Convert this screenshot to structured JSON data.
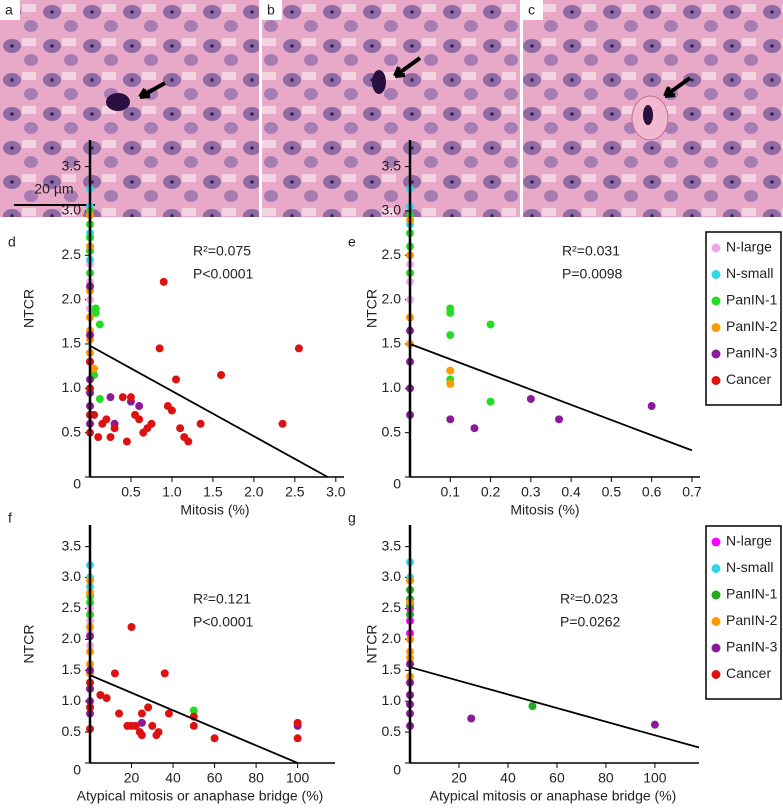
{
  "images": [
    {
      "label": "a"
    },
    {
      "label": "b"
    },
    {
      "label": "c"
    }
  ],
  "scale_bar": "20 µm",
  "chart_data": [
    {
      "type": "scatter",
      "panel": "d",
      "xlabel": "Mitosis (%)",
      "ylabel": "NTCR",
      "annotations": [
        "R²=0.075",
        "P<0.0001"
      ],
      "legend": "none",
      "xlim": [
        0,
        3.1
      ],
      "ylim": [
        0,
        3.8
      ],
      "xticks": [
        0.5,
        {
          "value": 1,
          "label": "1.0"
        },
        1.5,
        {
          "value": 2,
          "label": "2.0"
        },
        2.5,
        {
          "value": 3,
          "label": "3.0"
        }
      ],
      "yticks": [
        0,
        0.5,
        {
          "value": 1,
          "label": "1.0"
        },
        1.5,
        {
          "value": 2,
          "label": "2.0"
        },
        2.5,
        {
          "value": 3,
          "label": "3.0"
        },
        3.5
      ],
      "series": [
        {
          "color": "#f2a8e8",
          "x": [
            0,
            0,
            0,
            0,
            0,
            0
          ],
          "y": [
            2.4,
            2.3,
            2.2,
            2.0,
            1.9,
            1.8
          ]
        },
        {
          "color": "#33d6e6",
          "x": [
            0,
            0,
            0,
            0,
            0
          ],
          "y": [
            3.25,
            3.05,
            2.75,
            2.6,
            2.45
          ]
        },
        {
          "color": "#22dd22",
          "x": [
            0,
            0,
            0,
            0,
            0,
            0.07,
            0.07,
            0.12,
            0.12,
            0.05
          ],
          "y": [
            3.0,
            2.85,
            2.7,
            2.55,
            2.3,
            1.9,
            1.85,
            1.72,
            0.88,
            1.15
          ]
        },
        {
          "color": "#ff9900",
          "x": [
            0,
            0,
            0,
            0,
            0,
            0,
            0,
            0.05
          ],
          "y": [
            2.95,
            2.6,
            2.1,
            1.8,
            1.65,
            1.55,
            1.4,
            1.22
          ]
        },
        {
          "color": "#8b1a9b",
          "x": [
            0,
            0,
            0,
            0,
            0,
            0,
            0,
            0.25,
            0.3,
            0.6,
            0.5
          ],
          "y": [
            2.15,
            1.6,
            1.3,
            1.1,
            0.95,
            0.8,
            0.6,
            0.9,
            0.6,
            0.8,
            0.85
          ]
        },
        {
          "color": "#dd1111",
          "x": [
            0,
            0,
            0,
            0,
            0.05,
            0.1,
            0.15,
            0.2,
            0.25,
            0.3,
            0.4,
            0.45,
            0.5,
            0.55,
            0.6,
            0.65,
            0.7,
            0.75,
            0.85,
            0.9,
            0.95,
            1.0,
            1.05,
            1.1,
            1.15,
            1.2,
            1.35,
            1.6,
            2.35,
            2.55
          ],
          "y": [
            1.3,
            1.0,
            0.7,
            0.5,
            0.7,
            0.45,
            0.6,
            0.65,
            0.45,
            0.55,
            0.9,
            0.4,
            0.9,
            0.7,
            0.65,
            0.5,
            0.55,
            0.6,
            1.45,
            2.2,
            0.8,
            0.75,
            1.1,
            0.55,
            0.45,
            0.4,
            0.6,
            1.15,
            0.6,
            1.45
          ]
        }
      ],
      "fit_line": {
        "x": [
          0,
          2.9
        ],
        "y": [
          1.48,
          0
        ]
      }
    },
    {
      "type": "scatter",
      "panel": "e",
      "xlabel": "Mitosis (%)",
      "ylabel": "NTCR",
      "annotations": [
        "R²=0.031",
        "P=0.0098"
      ],
      "legend": "right",
      "xlim": [
        0,
        0.72
      ],
      "ylim": [
        0,
        3.8
      ],
      "xticks": [
        0.1,
        0.2,
        0.3,
        0.4,
        0.5,
        0.6,
        0.7
      ],
      "yticks": [
        0,
        0.5,
        {
          "value": 1,
          "label": "1.0"
        },
        1.5,
        {
          "value": 2,
          "label": "2.0"
        },
        2.5,
        {
          "value": 3,
          "label": "3.0"
        },
        3.5
      ],
      "series": [
        {
          "name": "N-large",
          "color": "#f2a8e8",
          "x": [
            0,
            0,
            0,
            0,
            0
          ],
          "y": [
            2.5,
            2.4,
            2.3,
            2.2,
            2.0
          ]
        },
        {
          "name": "N-small",
          "color": "#33d6e6",
          "x": [
            0,
            0,
            0
          ],
          "y": [
            3.25,
            3.05,
            2.85
          ]
        },
        {
          "name": "PanIN-1",
          "color": "#22dd22",
          "x": [
            0,
            0,
            0,
            0,
            0.1,
            0.1,
            0.1,
            0.1,
            0.2,
            0.2
          ],
          "y": [
            2.95,
            2.75,
            2.6,
            2.3,
            1.9,
            1.85,
            1.6,
            1.1,
            1.72,
            0.85
          ]
        },
        {
          "name": "PanIN-2",
          "color": "#ff9900",
          "x": [
            0,
            0,
            0,
            0,
            0.1,
            0.1
          ],
          "y": [
            2.9,
            2.5,
            1.8,
            1.5,
            1.2,
            1.05
          ]
        },
        {
          "name": "PanIN-3",
          "color": "#8b1a9b",
          "x": [
            0,
            0,
            0,
            0,
            0.1,
            0.16,
            0.3,
            0.37,
            0.6
          ],
          "y": [
            1.65,
            1.3,
            1.0,
            0.7,
            0.65,
            0.55,
            0.88,
            0.65,
            0.8
          ]
        },
        {
          "name": "Cancer",
          "color": "#dd1111",
          "x": [],
          "y": []
        }
      ],
      "fit_line": {
        "x": [
          0,
          0.7
        ],
        "y": [
          1.5,
          0.3
        ]
      }
    },
    {
      "type": "scatter",
      "panel": "f",
      "xlabel": "Atypical mitosis or anaphase bridge (%)",
      "ylabel": "NTCR",
      "annotations": [
        "R²=0.121",
        "P<0.0001"
      ],
      "legend": "none",
      "xlim": [
        0,
        118
      ],
      "ylim": [
        0,
        3.85
      ],
      "xticks": [
        20,
        40,
        60,
        80,
        100
      ],
      "yticks": [
        0,
        0.5,
        {
          "value": 1,
          "label": "1.0"
        },
        1.5,
        {
          "value": 2,
          "label": "2.0"
        },
        2.5,
        {
          "value": 3,
          "label": "3.0"
        },
        3.5
      ],
      "series": [
        {
          "color": "#f2a8e8",
          "x": [
            0,
            0,
            0,
            0
          ],
          "y": [
            2.5,
            2.3,
            2.1,
            1.9
          ]
        },
        {
          "color": "#33d6e6",
          "x": [
            0,
            0,
            0
          ],
          "y": [
            3.2,
            3.0,
            2.85
          ]
        },
        {
          "color": "#22dd22",
          "x": [
            0,
            0,
            0,
            50
          ],
          "y": [
            2.7,
            2.6,
            2.4,
            0.85
          ]
        },
        {
          "color": "#ff9900",
          "x": [
            0,
            0,
            0,
            0,
            0,
            0
          ],
          "y": [
            2.95,
            2.75,
            2.2,
            1.8,
            1.6,
            1.45
          ]
        },
        {
          "color": "#8b1a9b",
          "x": [
            0,
            0,
            0,
            0,
            0,
            25,
            100
          ],
          "y": [
            2.05,
            1.5,
            1.2,
            1.0,
            0.8,
            0.65,
            0.6
          ]
        },
        {
          "color": "#dd1111",
          "x": [
            0,
            0,
            0,
            5,
            8,
            12,
            14,
            18,
            20,
            22,
            24,
            25,
            28,
            30,
            33,
            36,
            38,
            50,
            50,
            60,
            100,
            100,
            20,
            25,
            32
          ],
          "y": [
            1.3,
            0.9,
            0.55,
            1.1,
            1.05,
            1.45,
            0.8,
            0.6,
            2.2,
            0.6,
            0.5,
            0.45,
            0.9,
            0.6,
            0.5,
            1.45,
            0.8,
            0.75,
            0.6,
            0.4,
            0.65,
            0.4,
            0.6,
            0.8,
            0.45
          ]
        }
      ],
      "fit_line": {
        "x": [
          0,
          100
        ],
        "y": [
          1.42,
          0
        ]
      }
    },
    {
      "type": "scatter",
      "panel": "g",
      "xlabel": "Atypical mitosis or anaphase bridge (%)",
      "ylabel": "NTCR",
      "annotations": [
        "R²=0.023",
        "P=0.0262"
      ],
      "legend": "right",
      "xlim": [
        0,
        118
      ],
      "ylim": [
        0,
        3.85
      ],
      "xticks": [
        20,
        40,
        60,
        80,
        100
      ],
      "yticks": [
        0,
        0.5,
        {
          "value": 1,
          "label": "1.0"
        },
        1.5,
        {
          "value": 2,
          "label": "2.0"
        },
        2.5,
        {
          "value": 3,
          "label": "3.0"
        },
        3.5
      ],
      "series": [
        {
          "name": "N-large",
          "color": "#ff00ff",
          "x": [
            0,
            0,
            0
          ],
          "y": [
            2.5,
            2.3,
            2.1
          ]
        },
        {
          "name": "N-small",
          "color": "#33d6e6",
          "x": [
            0,
            0
          ],
          "y": [
            3.25,
            3.0
          ]
        },
        {
          "name": "PanIN-1",
          "color": "#1faa1f",
          "x": [
            0,
            0,
            0,
            0,
            50
          ],
          "y": [
            2.8,
            2.65,
            2.55,
            2.4,
            0.92
          ]
        },
        {
          "name": "PanIN-2",
          "color": "#ff9900",
          "x": [
            0,
            0,
            0,
            0,
            0,
            0
          ],
          "y": [
            2.95,
            2.6,
            2.0,
            1.8,
            1.7,
            1.4
          ]
        },
        {
          "name": "PanIN-3",
          "color": "#8b1a9b",
          "x": [
            0,
            0,
            0,
            0,
            0,
            0,
            25,
            100
          ],
          "y": [
            1.6,
            1.3,
            1.1,
            0.95,
            0.8,
            0.6,
            0.72,
            0.62
          ]
        },
        {
          "name": "Cancer",
          "color": "#dd1111",
          "x": [],
          "y": []
        }
      ],
      "fit_line": {
        "x": [
          0,
          118
        ],
        "y": [
          1.55,
          0.25
        ]
      }
    }
  ]
}
